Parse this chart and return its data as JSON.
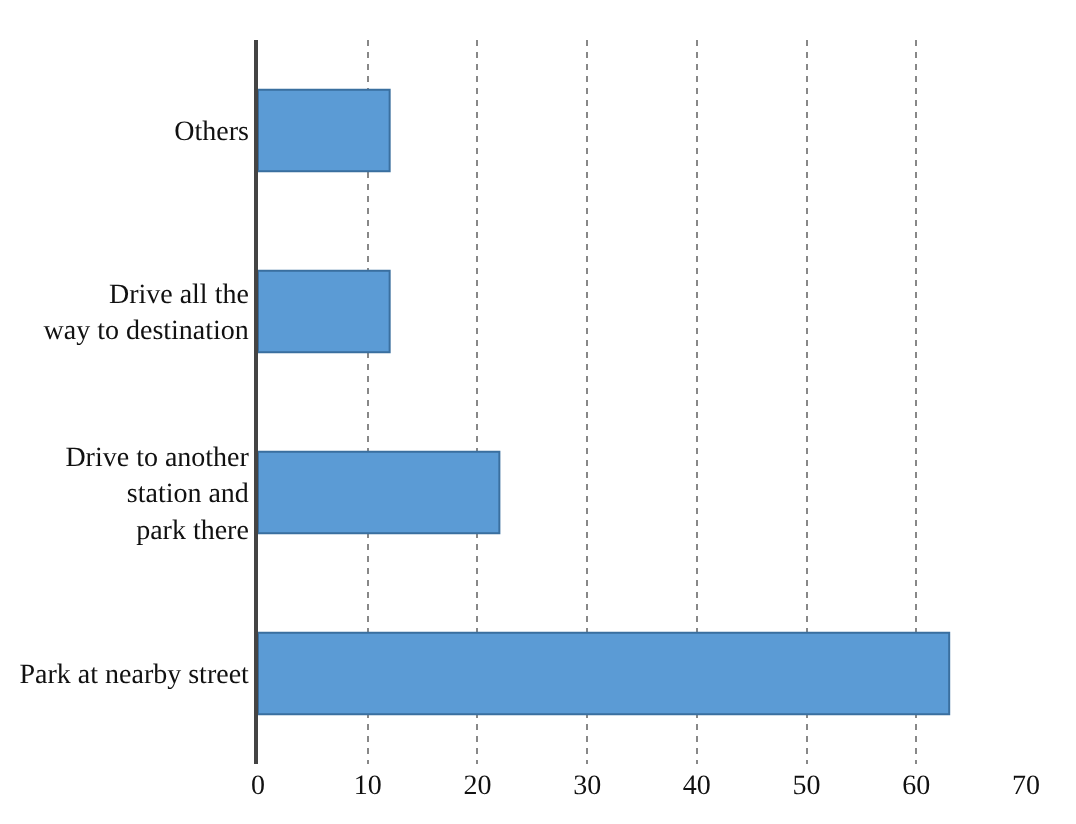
{
  "chart_data": {
    "type": "bar",
    "orientation": "horizontal",
    "categories": [
      "Others",
      "Drive all the\nway to destination",
      "Drive to another\nstation and\npark there",
      "Park at nearby street"
    ],
    "values": [
      12,
      12,
      22,
      63
    ],
    "color": "#5b9bd5",
    "xlim": [
      0,
      70
    ],
    "xticks": [
      0,
      10,
      20,
      30,
      40,
      50,
      60,
      70
    ],
    "grid": "x"
  }
}
